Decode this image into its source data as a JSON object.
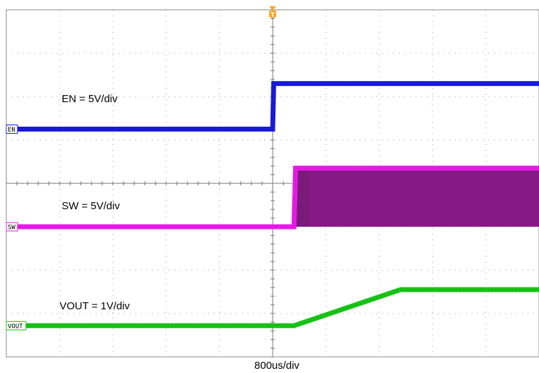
{
  "chart_data": {
    "type": "line",
    "title": "",
    "xlabel": "800us/div",
    "time_per_div_us": 800,
    "divisions": {
      "x": 10,
      "y": 8
    },
    "grid": true,
    "trigger_marker": "T",
    "trigger_color": "#f5a623",
    "series": [
      {
        "name": "EN",
        "tag": "EN",
        "scale_label": "EN = 5V/div",
        "color": "#1a1adb",
        "points_div": [
          [
            0,
            5.25
          ],
          [
            5.0,
            5.25
          ],
          [
            5.02,
            6.3
          ],
          [
            10,
            6.3
          ]
        ]
      },
      {
        "name": "SW",
        "tag": "SW",
        "scale_label": "SW = 5V/div",
        "color": "#e81ae8",
        "burst_color": "#7a1a7a",
        "switching_start_div": 5.43,
        "points_div": [
          [
            0,
            3.0
          ],
          [
            5.4,
            3.0
          ],
          [
            5.43,
            4.35
          ],
          [
            10,
            4.35
          ]
        ]
      },
      {
        "name": "VOUT",
        "tag": "VOUT",
        "scale_label": "VOUT = 1V/div",
        "color": "#18c418",
        "points_div": [
          [
            0,
            0.72
          ],
          [
            5.4,
            0.72
          ],
          [
            7.4,
            1.55
          ],
          [
            10,
            1.55
          ]
        ]
      }
    ]
  }
}
